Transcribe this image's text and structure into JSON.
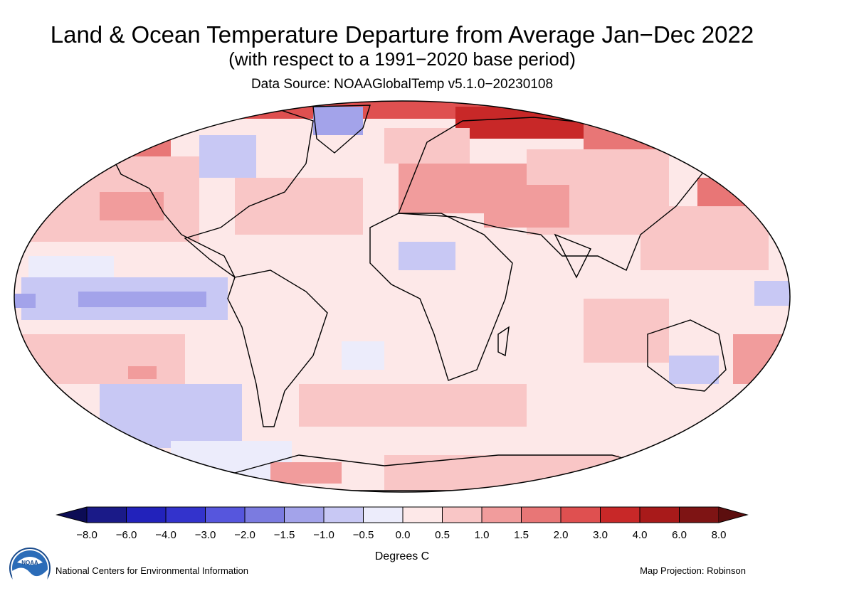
{
  "header": {
    "title": "Land & Ocean Temperature Departure from Average Jan−Dec 2022",
    "subtitle": "(with respect to a 1991−2020 base period)",
    "source": "Data Source: NOAAGlobalTemp v5.1.0−20230108"
  },
  "colorbar": {
    "ticks": [
      "−8.0",
      "−6.0",
      "−4.0",
      "−3.0",
      "−2.0",
      "−1.5",
      "−1.0",
      "−0.5",
      "0.0",
      "0.5",
      "1.0",
      "1.5",
      "2.0",
      "3.0",
      "4.0",
      "6.0",
      "8.0"
    ],
    "colors": [
      "#1a1a88",
      "#2222bb",
      "#3333cc",
      "#5656dd",
      "#7b7be0",
      "#a3a3ea",
      "#c8c8f4",
      "#ececfb",
      "#fde8e8",
      "#f9c6c6",
      "#f19c9c",
      "#e87676",
      "#df5050",
      "#c82828",
      "#a81a1a",
      "#7e1414"
    ],
    "underflow_color": "#0c0c55",
    "overflow_color": "#5c0e0e",
    "units": "Degrees C"
  },
  "footer": {
    "credit": "National Centers for Environmental Information",
    "projection": "Map Projection: Robinson",
    "logo_text": "NOAA"
  },
  "map": {
    "projection": "Robinson",
    "ocean_background_color": "#fde8e8"
  }
}
